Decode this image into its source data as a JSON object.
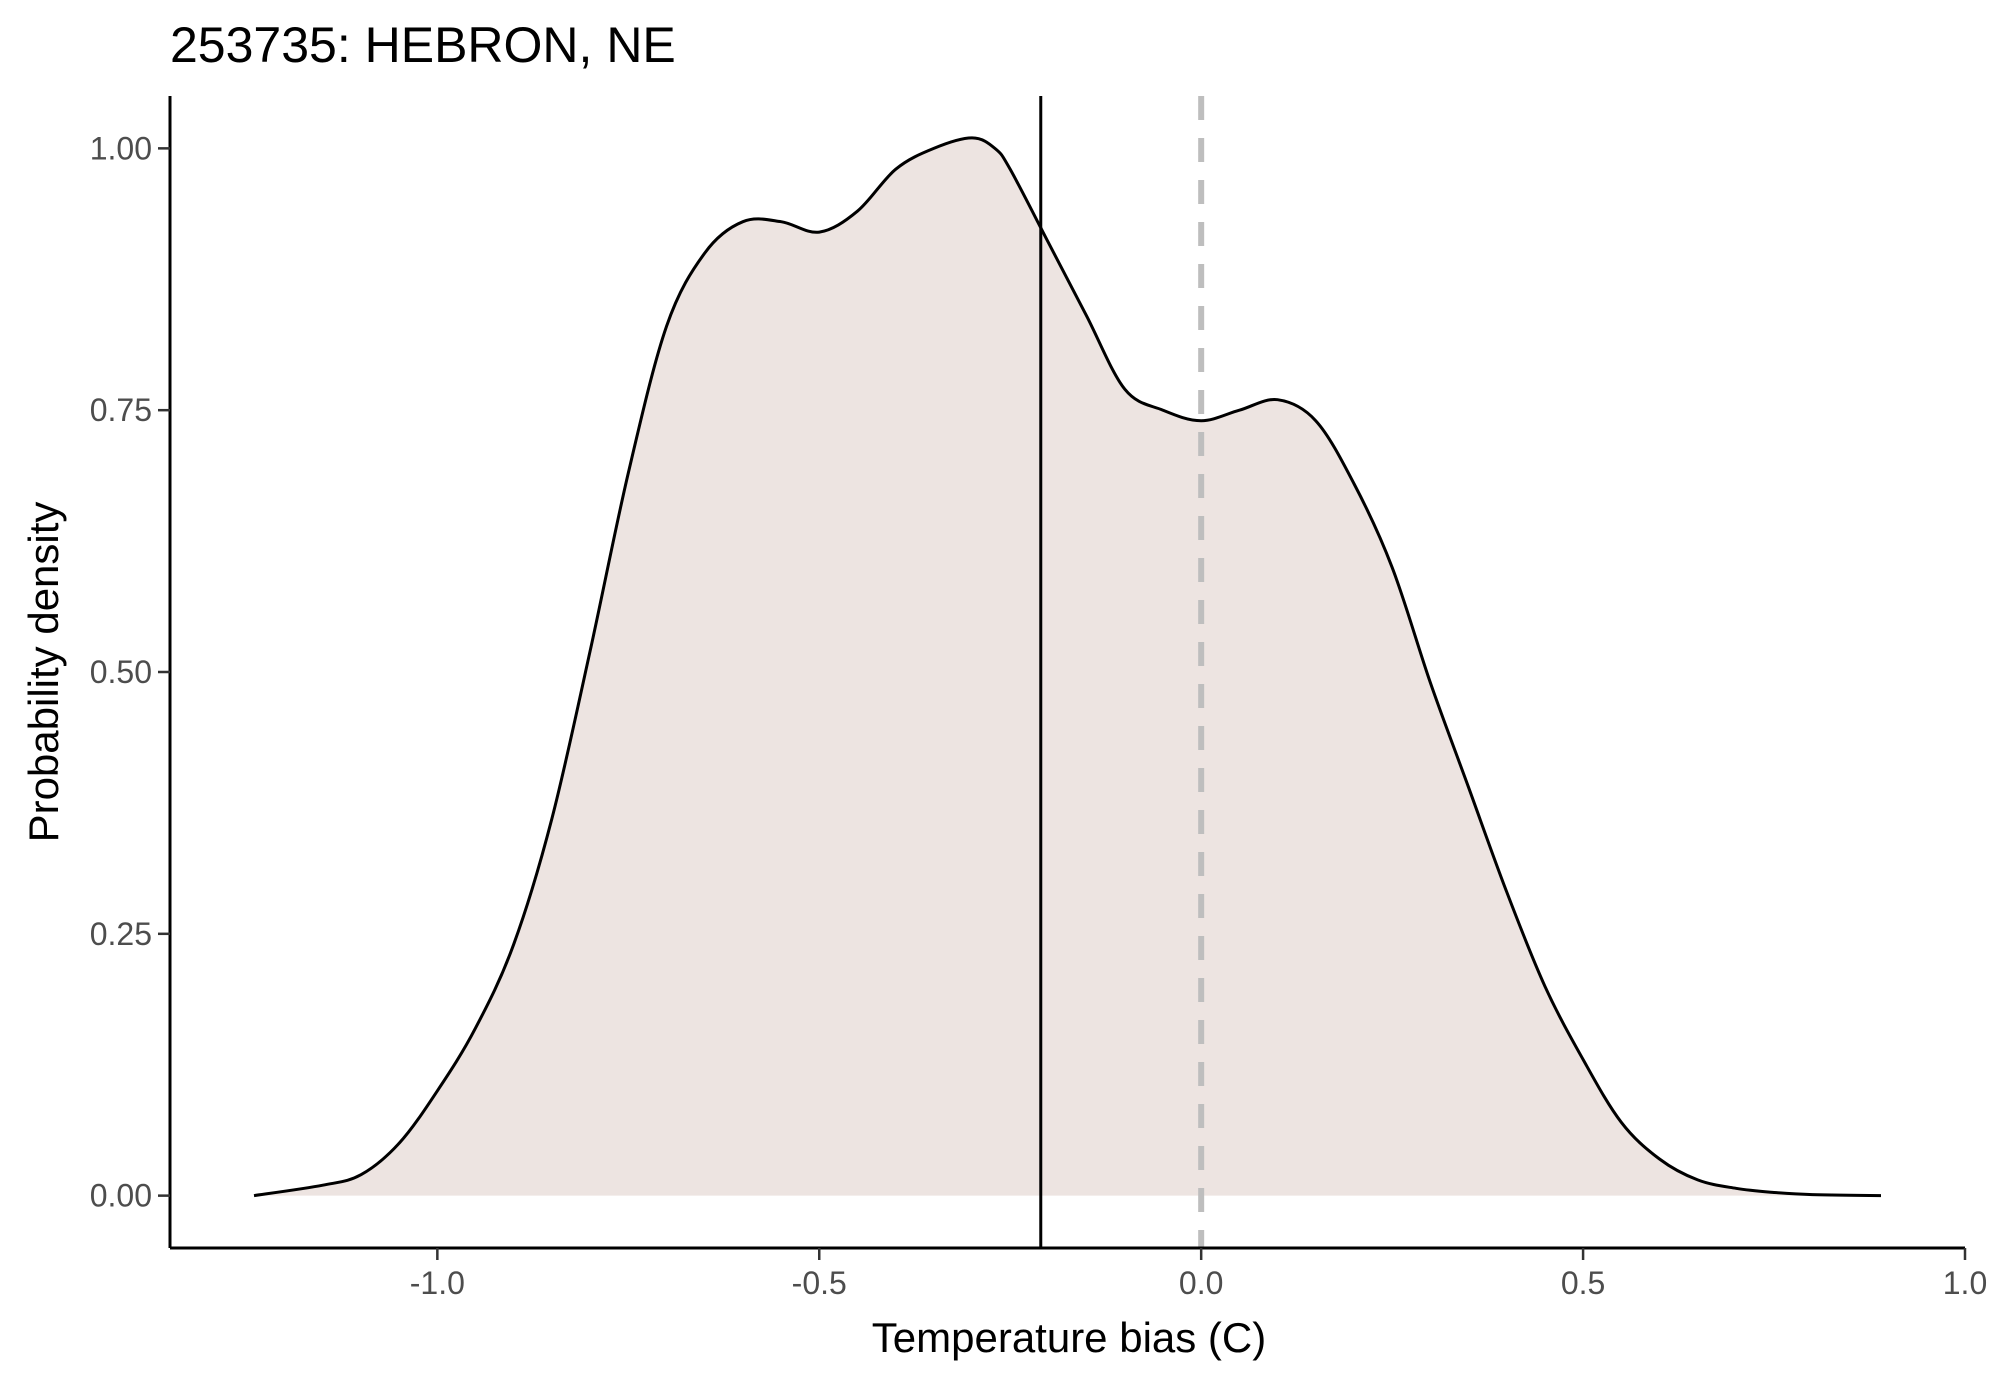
{
  "chart_data": {
    "type": "area",
    "title": "253735: HEBRON, NE",
    "xlabel": "Temperature bias (C)",
    "ylabel": "Probability density",
    "xlim": [
      -1.35,
      1.0
    ],
    "ylim": [
      -0.05,
      1.05
    ],
    "x_ticks": [
      -1.0,
      -0.5,
      0.0,
      0.5,
      1.0
    ],
    "x_tick_labels": [
      "-1.0",
      "-0.5",
      "0.0",
      "0.5",
      "1.0"
    ],
    "y_ticks": [
      0.0,
      0.25,
      0.5,
      0.75,
      1.0
    ],
    "y_tick_labels": [
      "0.00",
      "0.25",
      "0.50",
      "0.75",
      "1.00"
    ],
    "grid": false,
    "series": [
      {
        "x": [
          -1.24,
          -1.15,
          -1.1,
          -1.05,
          -1.0,
          -0.95,
          -0.9,
          -0.85,
          -0.8,
          -0.75,
          -0.7,
          -0.65,
          -0.6,
          -0.55,
          -0.5,
          -0.45,
          -0.4,
          -0.35,
          -0.3,
          -0.27,
          -0.25,
          -0.2,
          -0.15,
          -0.1,
          -0.05,
          0.0,
          0.05,
          0.1,
          0.15,
          0.2,
          0.25,
          0.3,
          0.35,
          0.4,
          0.45,
          0.5,
          0.55,
          0.6,
          0.65,
          0.7,
          0.75,
          0.8,
          0.89
        ],
        "y": [
          0.0,
          0.01,
          0.02,
          0.05,
          0.1,
          0.16,
          0.24,
          0.36,
          0.52,
          0.69,
          0.83,
          0.9,
          0.93,
          0.93,
          0.92,
          0.94,
          0.98,
          1.0,
          1.01,
          1.0,
          0.98,
          0.91,
          0.84,
          0.77,
          0.75,
          0.74,
          0.75,
          0.76,
          0.74,
          0.68,
          0.6,
          0.49,
          0.39,
          0.29,
          0.2,
          0.13,
          0.07,
          0.035,
          0.015,
          0.007,
          0.003,
          0.001,
          0.0
        ],
        "fill_color": "#ede4e1",
        "line_color": "#000000"
      }
    ],
    "reference_lines": [
      {
        "x": -0.21,
        "style": "solid",
        "color": "#000000"
      },
      {
        "x": 0.0,
        "style": "dashed",
        "color": "#bebebe"
      }
    ]
  }
}
